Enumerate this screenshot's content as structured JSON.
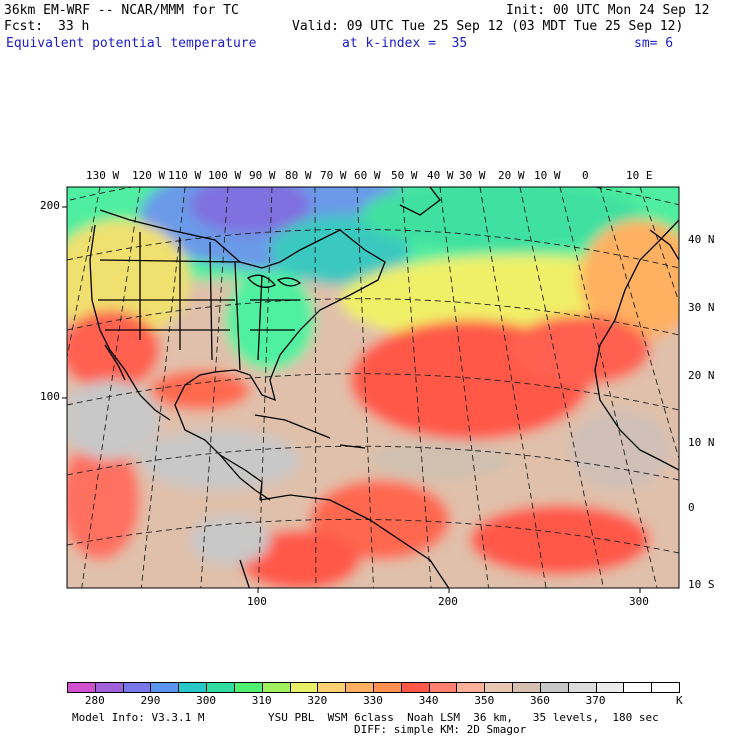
{
  "header": {
    "model": "36km EM-WRF -- NCAR/MMM for TC",
    "init": "Init: 00 UTC Mon 24 Sep 12",
    "fcst_label": "Fcst:",
    "fcst_value": "33 h",
    "valid": "Valid: 09 UTC Tue 25 Sep 12 (03 MDT Tue 25 Sep 12)",
    "field": "Equivalent potential temperature",
    "level": "at k-index =  35",
    "smoothing": "sm= 6"
  },
  "map": {
    "lon_labels": [
      "130 W",
      "120 W",
      "110 W",
      "100 W",
      "90 W",
      "80 W",
      "70 W",
      "60 W",
      "50 W",
      "40 W",
      "30 W",
      "20 W",
      "10 W",
      "0",
      "10 E"
    ],
    "lat_labels": [
      "40 N",
      "30 N",
      "20 N",
      "10 N",
      "0",
      "10 S"
    ],
    "grid_y_labels": [
      "200",
      "100"
    ],
    "grid_x_labels": [
      "100",
      "200",
      "300"
    ]
  },
  "colorbar": {
    "colors": [
      "#d050d0",
      "#a060d8",
      "#7878e8",
      "#5a96f0",
      "#28c8c8",
      "#30dca0",
      "#50f070",
      "#a0f060",
      "#e8f068",
      "#ffd070",
      "#ffb060",
      "#ff9050",
      "#ff5848",
      "#ff8070",
      "#ffb098",
      "#e8c8b0",
      "#d8c0b0",
      "#c8c8c8",
      "#dcdcdc",
      "#ececec",
      "#ffffff",
      "#ffffff"
    ],
    "labels": [
      "280",
      "290",
      "300",
      "310",
      "320",
      "330",
      "340",
      "350",
      "360",
      "370"
    ],
    "unit": "K"
  },
  "footer": {
    "info": "Model Info: V3.3.1 M",
    "physics": "YSU PBL  WSM 6class  Noah LSM  36 km,   35 levels,  180 sec",
    "diffusion": "DIFF: simple KM: 2D Smagor"
  }
}
